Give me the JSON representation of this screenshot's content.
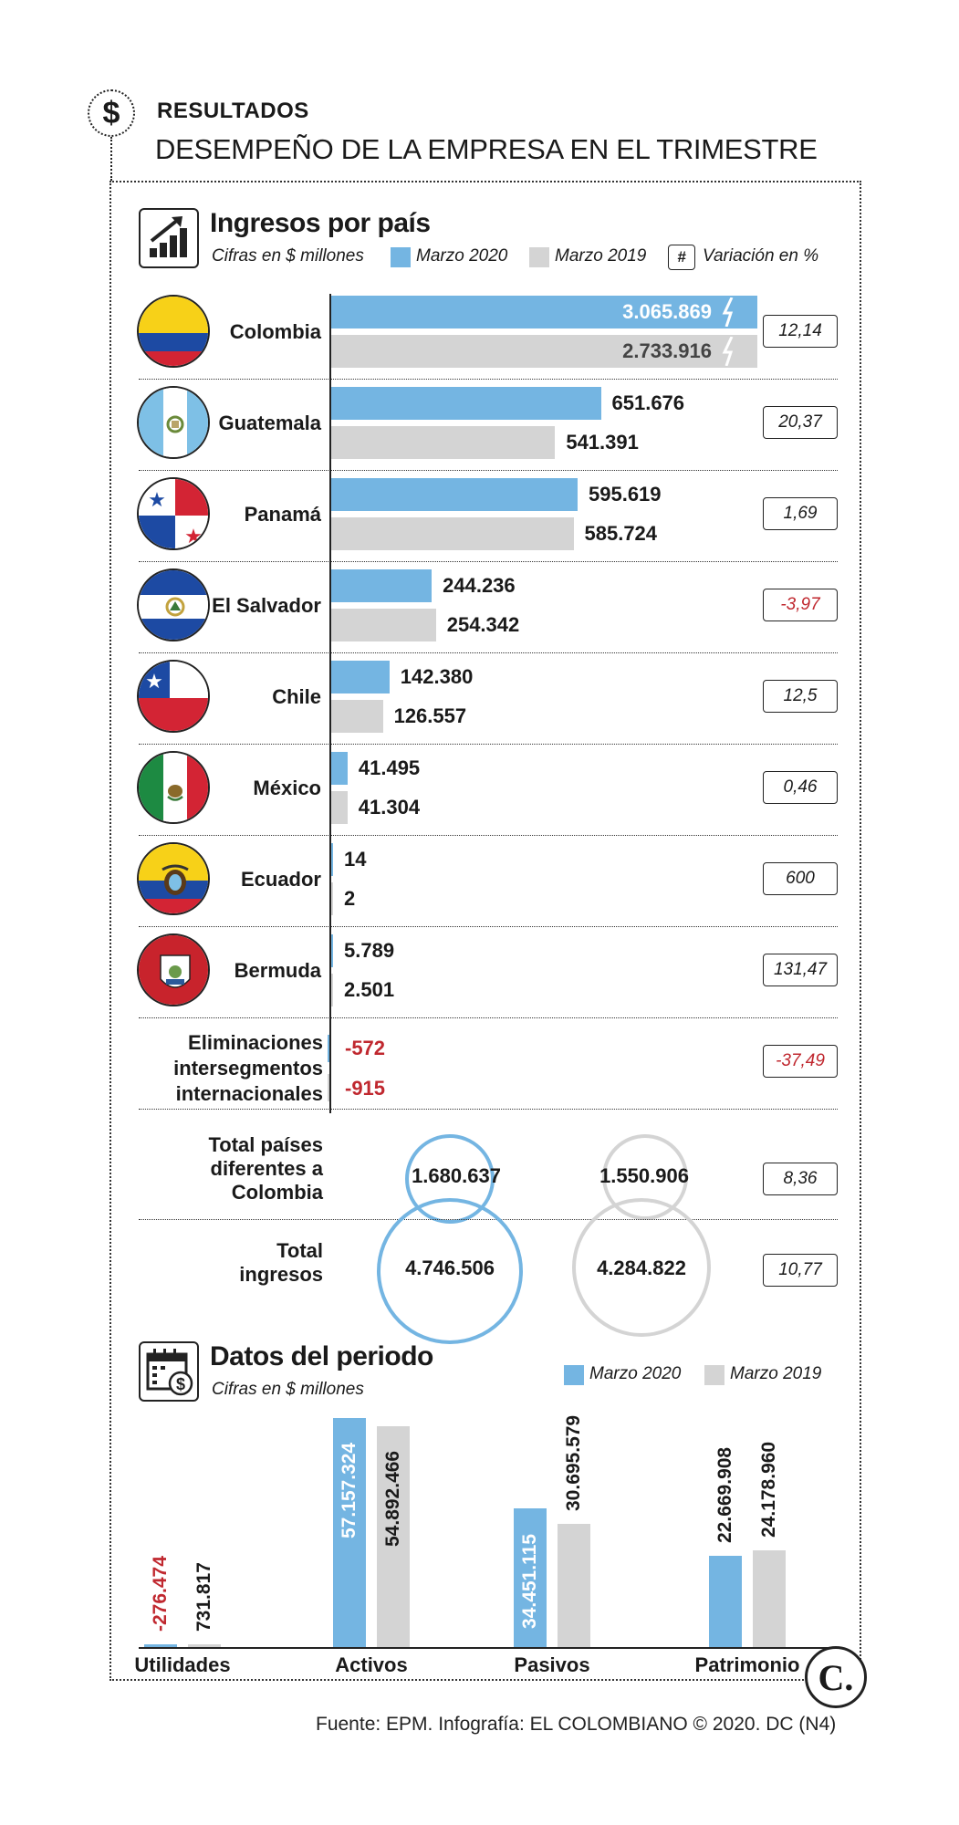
{
  "header": {
    "kicker": "RESULTADOS",
    "headline": "DESEMPEÑO DE LA EMPRESA EN EL TRIMESTRE",
    "icon": "dollar-icon"
  },
  "colors": {
    "marzo2020": "#74b5e2",
    "marzo2019": "#d4d4d4",
    "negative": "#c0282f",
    "text": "#1a1a1a"
  },
  "section1": {
    "title": "Ingresos por país",
    "subtitle": "Cifras en $ millones",
    "legend": {
      "series1": "Marzo 2020",
      "series2": "Marzo 2019",
      "hash_symbol": "#",
      "variation": "Variación en %"
    }
  },
  "countries_table": {
    "rows": [
      {
        "name": "Colombia",
        "v2020": "3.065.869",
        "v2019": "2.733.916",
        "variation": "12,14",
        "negative_variation": false
      },
      {
        "name": "Guatemala",
        "v2020": "651.676",
        "v2019": "541.391",
        "variation": "20,37",
        "negative_variation": false
      },
      {
        "name": "Panamá",
        "v2020": "595.619",
        "v2019": "585.724",
        "variation": "1,69",
        "negative_variation": false
      },
      {
        "name": "El Salvador",
        "v2020": "244.236",
        "v2019": "254.342",
        "variation": "-3,97",
        "negative_variation": true
      },
      {
        "name": "Chile",
        "v2020": "142.380",
        "v2019": "126.557",
        "variation": "12,5",
        "negative_variation": false
      },
      {
        "name": "México",
        "v2020": "41.495",
        "v2019": "41.304",
        "variation": "0,46",
        "negative_variation": false
      },
      {
        "name": "Ecuador",
        "v2020": "14",
        "v2019": "2",
        "variation": "600",
        "negative_variation": false
      },
      {
        "name": "Bermuda",
        "v2020": "5.789",
        "v2019": "2.501",
        "variation": "131,47",
        "negative_variation": false
      }
    ],
    "eliminations": {
      "line1": "Eliminaciones",
      "line2": "intersegmentos",
      "line3": "internacionales",
      "v2020": "-572",
      "v2019": "-915",
      "variation": "-37,49"
    },
    "total_foreign": {
      "line1": "Total países",
      "line2": "diferentes a",
      "line3": "Colombia",
      "v2020": "1.680.637",
      "v2019": "1.550.906",
      "variation": "8,36"
    },
    "total": {
      "line1": "Total",
      "line2": "ingresos",
      "v2020": "4.746.506",
      "v2019": "4.284.822",
      "variation": "10,77"
    }
  },
  "section2": {
    "title": "Datos del periodo",
    "subtitle": "Cifras en $ millones",
    "legend": {
      "series1": "Marzo 2020",
      "series2": "Marzo 2019"
    }
  },
  "chart_data": [
    {
      "type": "bar",
      "orientation": "horizontal",
      "title": "Ingresos por país",
      "subtitle": "Cifras en $ millones",
      "categories": [
        "Colombia",
        "Guatemala",
        "Panamá",
        "El Salvador",
        "Chile",
        "México",
        "Ecuador",
        "Bermuda",
        "Eliminaciones intersegmentos internacionales"
      ],
      "series": [
        {
          "name": "Marzo 2020",
          "color": "#74b5e2",
          "values": [
            3065869,
            651676,
            595619,
            244236,
            142380,
            41495,
            14,
            5789,
            -572
          ]
        },
        {
          "name": "Marzo 2019",
          "color": "#d4d4d4",
          "values": [
            2733916,
            541391,
            585724,
            254342,
            126557,
            41304,
            2,
            2501,
            -915
          ]
        }
      ],
      "variation_pct": [
        12.14,
        20.37,
        1.69,
        -3.97,
        12.5,
        0.46,
        600,
        131.47,
        -37.49
      ],
      "axis_break": "Colombia bars truncated"
    },
    {
      "type": "bar",
      "title": "Datos del periodo",
      "subtitle": "Cifras en $ millones",
      "categories": [
        "Utilidades",
        "Activos",
        "Pasivos",
        "Patrimonio"
      ],
      "series": [
        {
          "name": "Marzo 2020",
          "color": "#74b5e2",
          "values": [
            -276474,
            57157324,
            34451115,
            22669908
          ],
          "labels": [
            "-276.474",
            "57.157.324",
            "34.451.115",
            "22.669.908"
          ]
        },
        {
          "name": "Marzo 2019",
          "color": "#d4d4d4",
          "values": [
            731817,
            54892466,
            30695579,
            24178960
          ],
          "labels": [
            "731.817",
            "54.892.466",
            "30.695.579",
            "24.178.960"
          ]
        }
      ]
    }
  ],
  "footer": {
    "source": "Fuente: EPM. Infografía: EL COLOMBIANO © 2020. DC (N4)",
    "logo_letter": "C."
  }
}
